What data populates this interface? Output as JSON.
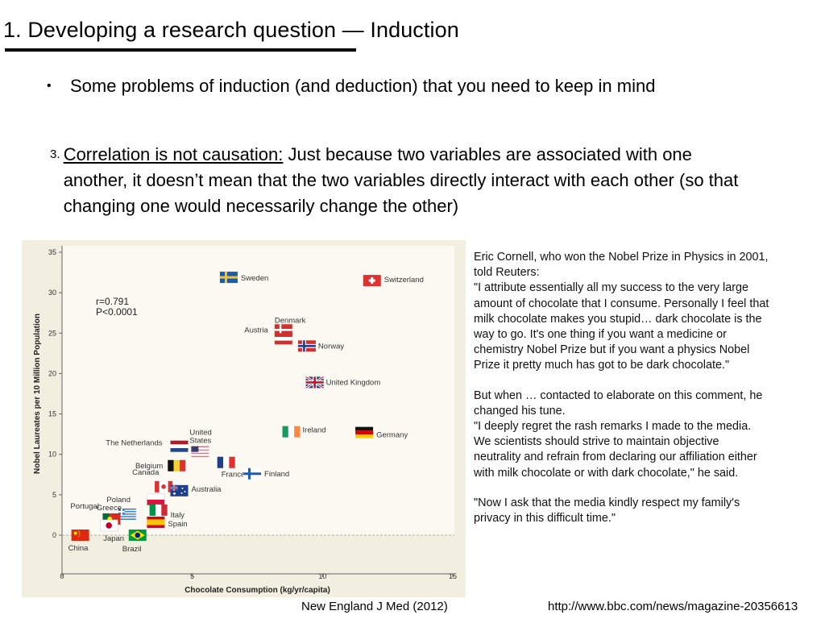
{
  "title": "1. Developing a research question — Induction",
  "bullets": [
    {
      "marker": "•",
      "text": "Some problems of induction (and deduction) that you need to keep in mind"
    },
    {
      "marker": "3.",
      "underlined": "Correlation is not causation:",
      "text": " Just because two variables are associated with one another, it doesn’t mean that the two variables directly interact with each other (so that changing one would necessarily change the other)"
    }
  ],
  "quote": {
    "para1": [
      "Eric Cornell, who won the Nobel Prize in Physics in 2001,",
      "told Reuters:",
      "\"I attribute essentially all my success to the very large",
      "amount of chocolate that I consume. Personally I feel that",
      "milk chocolate makes you stupid… dark chocolate is the",
      "way to go. It's one thing if you want a medicine or",
      "chemistry Nobel Prize but if you want a physics Nobel",
      "Prize it pretty much has got to be dark chocolate.\""
    ],
    "para2": [
      "But when … contacted to elaborate on this comment, he",
      "changed his tune.",
      "\"I deeply regret the rash remarks I made to the media.",
      "We scientists should strive to maintain objective",
      "neutrality and refrain from declaring our affiliation either",
      "with milk chocolate or with dark chocolate,\" he said."
    ],
    "para3": [
      "\"Now I ask that the media kindly respect my family's",
      "privacy in this difficult time.\""
    ]
  },
  "sources": {
    "left": "New England J Med (2012)",
    "right": "http://www.bbc.com/news/magazine-20356613"
  },
  "chart_data": {
    "type": "scatter",
    "title": "",
    "xlabel": "Chocolate Consumption (kg/yr/capita)",
    "ylabel": "Nobel Laureates per 10 Million Population",
    "xlim": [
      0,
      15
    ],
    "ylim": [
      0,
      35
    ],
    "xticks": [
      0,
      5,
      10,
      15
    ],
    "yticks": [
      0,
      5,
      10,
      15,
      20,
      25,
      30,
      35
    ],
    "annotation": [
      "r=0.791",
      "P<0.0001"
    ],
    "points": [
      {
        "country": "Sweden",
        "x": 6.4,
        "y": 31.9,
        "flag": "sweden"
      },
      {
        "country": "Switzerland",
        "x": 11.9,
        "y": 31.5,
        "flag": "switzerland"
      },
      {
        "country": "Denmark",
        "x": 8.5,
        "y": 25.4,
        "flag": "denmark"
      },
      {
        "country": "Austria",
        "x": 8.5,
        "y": 24.3,
        "flag": "austria"
      },
      {
        "country": "Norway",
        "x": 9.4,
        "y": 23.4,
        "flag": "norway"
      },
      {
        "country": "United Kingdom",
        "x": 9.7,
        "y": 18.9,
        "flag": "uk"
      },
      {
        "country": "Ireland",
        "x": 8.8,
        "y": 12.8,
        "flag": "ireland"
      },
      {
        "country": "Germany",
        "x": 11.6,
        "y": 12.7,
        "flag": "germany"
      },
      {
        "country": "United States",
        "x": 5.3,
        "y": 10.3,
        "flag": "usa"
      },
      {
        "country": "The Netherlands",
        "x": 4.5,
        "y": 11.0,
        "flag": "netherlands"
      },
      {
        "country": "France",
        "x": 6.3,
        "y": 9.0,
        "flag": "france"
      },
      {
        "country": "Belgium",
        "x": 4.4,
        "y": 8.6,
        "flag": "belgium"
      },
      {
        "country": "Finland",
        "x": 7.3,
        "y": 7.6,
        "flag": "finland"
      },
      {
        "country": "Canada",
        "x": 3.9,
        "y": 6.0,
        "flag": "canada"
      },
      {
        "country": "Australia",
        "x": 4.5,
        "y": 5.5,
        "flag": "australia"
      },
      {
        "country": "Poland",
        "x": 3.6,
        "y": 4.4,
        "flag": "poland"
      },
      {
        "country": "Italy",
        "x": 3.7,
        "y": 3.1,
        "flag": "italy"
      },
      {
        "country": "Greece",
        "x": 2.5,
        "y": 2.6,
        "flag": "greece"
      },
      {
        "country": "Portugal",
        "x": 1.9,
        "y": 2.0,
        "flag": "portugal"
      },
      {
        "country": "Spain",
        "x": 3.6,
        "y": 1.6,
        "flag": "spain"
      },
      {
        "country": "Japan",
        "x": 1.8,
        "y": 1.2,
        "flag": "japan"
      },
      {
        "country": "Brazil",
        "x": 2.9,
        "y": 0.0,
        "flag": "brazil"
      },
      {
        "country": "China",
        "x": 0.7,
        "y": 0.0,
        "flag": "china"
      }
    ]
  }
}
